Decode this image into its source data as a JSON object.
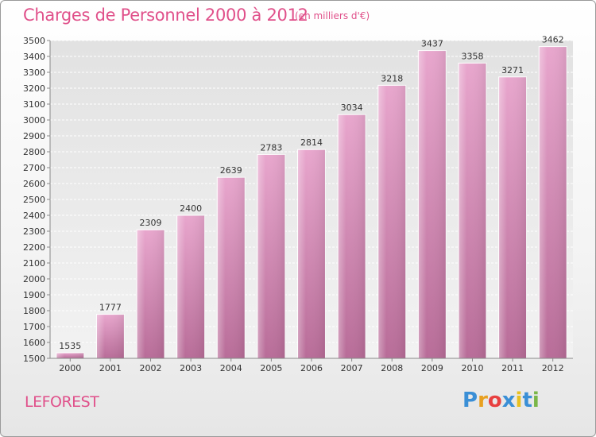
{
  "header": {
    "title": "Charges de Personnel 2000 à 2012",
    "subtitle": "(en milliers d'€)"
  },
  "footer": {
    "commune": "LEFOREST",
    "logo_letters": [
      "P",
      "r",
      "o",
      "x",
      "i",
      "t",
      "i"
    ],
    "logo_colors": [
      "#3a8fd6",
      "#e8a020",
      "#e84040",
      "#3a8fd6",
      "#e8c020",
      "#3a8fd6",
      "#7ab648"
    ]
  },
  "chart_data": {
    "type": "bar",
    "categories": [
      "2000",
      "2001",
      "2002",
      "2003",
      "2004",
      "2005",
      "2006",
      "2007",
      "2008",
      "2009",
      "2010",
      "2011",
      "2012"
    ],
    "values": [
      1535,
      1777,
      2309,
      2400,
      2639,
      2783,
      2814,
      3034,
      3218,
      3437,
      3358,
      3271,
      3462
    ],
    "title": "Charges de Personnel 2000 à 2012",
    "subtitle": "(en milliers d'€)",
    "xlabel": "",
    "ylabel": "",
    "ylim": [
      1500,
      3500
    ],
    "ytick_step": 100,
    "grid": true,
    "bar_color": "#d98bb8"
  }
}
